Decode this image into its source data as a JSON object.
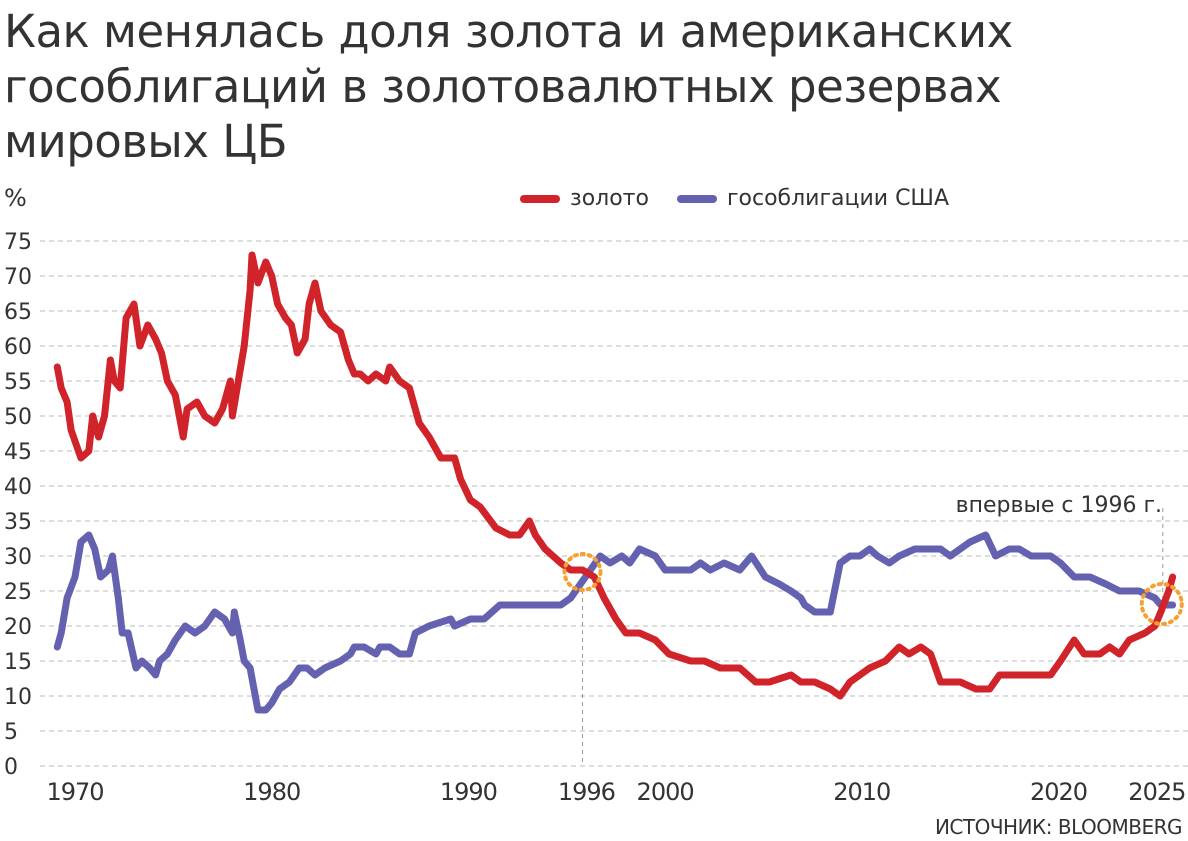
{
  "title_lines": [
    "Как менялась доля золота и американских",
    "гособлигаций в золотовалютных резервах",
    "мировых ЦБ"
  ],
  "source": "ИСТОЧНИК: BLOOMBERG",
  "chart_data": {
    "type": "line",
    "title": "Как менялась доля золота и американских гособлигаций в золотовалютных резервах мировых ЦБ",
    "ylabel": "%",
    "xlabel": "",
    "ylim": [
      0,
      75
    ],
    "xlim": [
      1969,
      2026
    ],
    "yticks": [
      0,
      5,
      10,
      15,
      20,
      25,
      30,
      35,
      40,
      45,
      50,
      55,
      60,
      65,
      70,
      75
    ],
    "xticks": [
      1970,
      1980,
      1990,
      1996,
      2000,
      2010,
      2020,
      2025
    ],
    "grid": "horizontal dashed",
    "legend_position": "top-right",
    "annotation": {
      "text": "впервые с 1996 г.",
      "x": 2025.2
    },
    "highlight_crossings": [
      1995.8,
      2025.2
    ],
    "colors": {
      "gold": "#d0232a",
      "treasuries": "#6461b0",
      "highlight": "#f5a030"
    },
    "series": [
      {
        "name": "золото",
        "color": "#d0232a",
        "x": [
          1969.1,
          1969.3,
          1969.6,
          1969.8,
          1970.3,
          1970.7,
          1970.9,
          1971.2,
          1971.5,
          1971.8,
          1972.0,
          1972.3,
          1972.6,
          1973.0,
          1973.3,
          1973.7,
          1974.1,
          1974.4,
          1974.7,
          1975.1,
          1975.3,
          1975.5,
          1975.7,
          1976.2,
          1976.6,
          1977.1,
          1977.5,
          1977.9,
          1978.0,
          1978.3,
          1978.6,
          1978.9,
          1979.0,
          1979.3,
          1979.7,
          1980.0,
          1980.3,
          1980.7,
          1981.0,
          1981.3,
          1981.7,
          1981.9,
          1982.2,
          1982.5,
          1983.0,
          1983.5,
          1983.9,
          1984.2,
          1984.5,
          1984.9,
          1985.3,
          1985.8,
          1986.0,
          1986.5,
          1987.0,
          1987.5,
          1988.0,
          1988.6,
          1989.3,
          1989.6,
          1990.1,
          1990.6,
          1991.4,
          1992.1,
          1992.6,
          1993.1,
          1993.4,
          1993.9,
          1994.7,
          1995.2,
          1995.8,
          1996.4,
          1996.9,
          1997.5,
          1998.0,
          1998.7,
          1999.5,
          2000.2,
          2001.3,
          2002.0,
          2002.8,
          2003.8,
          2004.6,
          2005.3,
          2006.4,
          2006.9,
          2007.6,
          2008.4,
          2008.9,
          2009.4,
          2010.4,
          2011.2,
          2011.9,
          2012.4,
          2013.0,
          2013.5,
          2014.0,
          2015.0,
          2015.8,
          2016.5,
          2017.0,
          2018.0,
          2019.1,
          2019.6,
          2020.1,
          2020.8,
          2021.3,
          2022.1,
          2022.6,
          2023.1,
          2023.6,
          2024.4,
          2024.9,
          2025.2,
          2025.6,
          2025.8
        ],
        "values": [
          57,
          54,
          52,
          48,
          44,
          45,
          50,
          47,
          50,
          58,
          55,
          54,
          64,
          66,
          60,
          63,
          61,
          59,
          55,
          53,
          50,
          47,
          51,
          52,
          50,
          49,
          51,
          55,
          50,
          55,
          60,
          68,
          73,
          69,
          72,
          70,
          66,
          64,
          63,
          59,
          61,
          66,
          69,
          65,
          63,
          62,
          58,
          56,
          56,
          55,
          56,
          55,
          57,
          55,
          54,
          49,
          47,
          44,
          44,
          41,
          38,
          37,
          34,
          33,
          33,
          35,
          33,
          31,
          29,
          28,
          28,
          27,
          24,
          21,
          19,
          19,
          18,
          16,
          15,
          15,
          14,
          14,
          12,
          12,
          13,
          12,
          12,
          11,
          10,
          12,
          14,
          15,
          17,
          16,
          17,
          16,
          12,
          12,
          11,
          11,
          13,
          13,
          13,
          13,
          15,
          18,
          16,
          16,
          17,
          16,
          18,
          19,
          20,
          22,
          25,
          27
        ]
      },
      {
        "name": "гособлигации США",
        "color": "#6461b0",
        "x": [
          1969.1,
          1969.3,
          1969.6,
          1970.0,
          1970.3,
          1970.7,
          1971.0,
          1971.3,
          1971.7,
          1971.9,
          1972.2,
          1972.4,
          1972.7,
          1973.1,
          1973.4,
          1973.8,
          1974.1,
          1974.3,
          1974.7,
          1975.1,
          1975.6,
          1976.1,
          1976.6,
          1977.1,
          1977.6,
          1978.0,
          1978.1,
          1978.4,
          1978.6,
          1978.9,
          1979.3,
          1979.7,
          1980.0,
          1980.4,
          1980.9,
          1981.4,
          1981.8,
          1982.2,
          1982.7,
          1983.5,
          1984.0,
          1984.2,
          1984.7,
          1985.3,
          1985.5,
          1986.0,
          1986.5,
          1987.0,
          1987.3,
          1988.0,
          1989.1,
          1989.3,
          1990.1,
          1990.8,
          1991.6,
          1992.6,
          1993.1,
          1993.6,
          1994.0,
          1994.7,
          1995.2,
          1995.7,
          1996.2,
          1996.7,
          1997.2,
          1997.8,
          1998.2,
          1998.7,
          1999.5,
          2000.0,
          2000.8,
          2001.3,
          2001.8,
          2002.3,
          2003.0,
          2003.8,
          2004.4,
          2005.1,
          2005.8,
          2006.4,
          2006.9,
          2007.1,
          2007.6,
          2008.4,
          2008.9,
          2009.4,
          2009.9,
          2010.4,
          2010.8,
          2011.4,
          2011.9,
          2012.7,
          2013.2,
          2014.0,
          2014.5,
          2015.5,
          2016.3,
          2016.8,
          2017.5,
          2018.0,
          2018.6,
          2019.6,
          2020.1,
          2020.8,
          2021.6,
          2022.4,
          2023.1,
          2024.1,
          2024.9,
          2025.2,
          2025.8
        ],
        "values": [
          17,
          19,
          24,
          27,
          32,
          33,
          31,
          27,
          28,
          30,
          24,
          19,
          19,
          14,
          15,
          14,
          13,
          15,
          16,
          18,
          20,
          19,
          20,
          22,
          21,
          19,
          22,
          18,
          15,
          14,
          8,
          8,
          9,
          11,
          12,
          14,
          14,
          13,
          14,
          15,
          16,
          17,
          17,
          16,
          17,
          17,
          16,
          16,
          19,
          20,
          21,
          20,
          21,
          21,
          23,
          23,
          23,
          23,
          23,
          23,
          24,
          26,
          28,
          30,
          29,
          30,
          29,
          31,
          30,
          28,
          28,
          28,
          29,
          28,
          29,
          28,
          30,
          27,
          26,
          25,
          24,
          23,
          22,
          22,
          29,
          30,
          30,
          31,
          30,
          29,
          30,
          31,
          31,
          31,
          30,
          32,
          33,
          30,
          31,
          31,
          30,
          30,
          29,
          27,
          27,
          26,
          25,
          25,
          24,
          23,
          23
        ]
      }
    ]
  }
}
